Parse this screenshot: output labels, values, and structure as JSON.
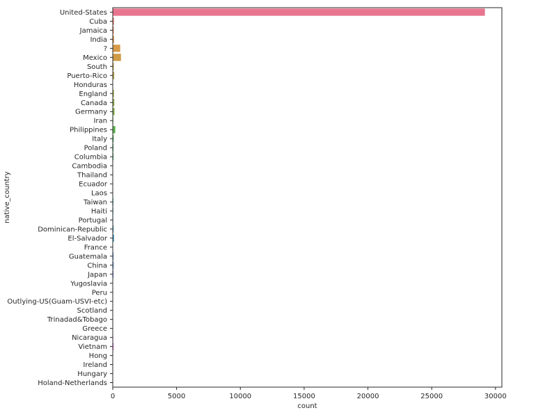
{
  "chart_data": {
    "type": "bar",
    "orientation": "horizontal",
    "xlabel": "count",
    "ylabel": "native_country",
    "xlim": [
      0,
      30500
    ],
    "xticks": [
      0,
      5000,
      10000,
      15000,
      20000,
      25000,
      30000
    ],
    "grid": false,
    "legend": "none",
    "categories": [
      "United-States",
      "Cuba",
      "Jamaica",
      "India",
      "?",
      "Mexico",
      "South",
      "Puerto-Rico",
      "Honduras",
      "England",
      "Canada",
      "Germany",
      "Iran",
      "Philippines",
      "Italy",
      "Poland",
      "Columbia",
      "Cambodia",
      "Thailand",
      "Ecuador",
      "Laos",
      "Taiwan",
      "Haiti",
      "Portugal",
      "Dominican-Republic",
      "El-Salvador",
      "France",
      "Guatemala",
      "China",
      "Japan",
      "Yugoslavia",
      "Peru",
      "Outlying-US(Guam-USVI-etc)",
      "Scotland",
      "Trinadad&Tobago",
      "Greece",
      "Nicaragua",
      "Vietnam",
      "Hong",
      "Ireland",
      "Hungary",
      "Holand-Netherlands"
    ],
    "values": [
      29170,
      95,
      81,
      100,
      583,
      643,
      80,
      114,
      13,
      90,
      121,
      137,
      43,
      198,
      73,
      60,
      59,
      19,
      18,
      28,
      18,
      51,
      44,
      37,
      70,
      106,
      29,
      64,
      75,
      62,
      16,
      31,
      14,
      12,
      19,
      29,
      34,
      67,
      20,
      24,
      13,
      1
    ],
    "colors": [
      "#e8758f",
      "#e67e71",
      "#e08a5a",
      "#d8934a",
      "#d69a48",
      "#cf9b46",
      "#c59d47",
      "#b9a346",
      "#aca848",
      "#9dab49",
      "#8fac4a",
      "#7fae4a",
      "#6cb04c",
      "#59b44a",
      "#4cb55a",
      "#4ab46c",
      "#4bb37a",
      "#4bb186",
      "#4cb092",
      "#4dae9c",
      "#4eada5",
      "#4fabae",
      "#50aab7",
      "#52a8be",
      "#55a6c6",
      "#58a3cd",
      "#5da0d4",
      "#659cdb",
      "#7198e0",
      "#8193e4",
      "#928fe8",
      "#a18be8",
      "#ad88e6",
      "#b985e3",
      "#c383df",
      "#cc80d9",
      "#d57ed3",
      "#dc7ccb",
      "#e17bc2",
      "#e47ab7",
      "#e679ad",
      "#e778a3"
    ]
  }
}
